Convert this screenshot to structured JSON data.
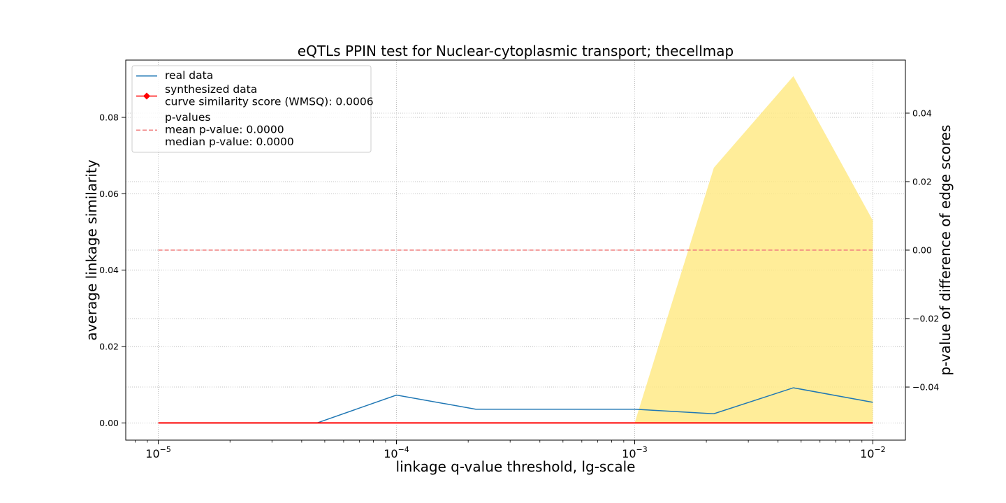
{
  "chart_data": {
    "type": "line",
    "title": "eQTLs PPIN test for Nuclear-cytoplasmic transport; thecellmap",
    "xlabel": "linkage q-value threshold, lg-scale",
    "ylabel": "average linkage similarity",
    "ylabel_right": "p-value of difference of edge scores",
    "xscale": "log",
    "xlim": [
      7.3e-06,
      0.0137
    ],
    "ylim": [
      -0.0045,
      0.095
    ],
    "ylim_right": [
      -0.0555,
      0.0555
    ],
    "grid": true,
    "x_ticks": [
      {
        "value": 1e-05,
        "base": "10",
        "exp": "−5"
      },
      {
        "value": 0.0001,
        "base": "10",
        "exp": "−4"
      },
      {
        "value": 0.001,
        "base": "10",
        "exp": "−3"
      },
      {
        "value": 0.01,
        "base": "10",
        "exp": "−2"
      }
    ],
    "y_ticks": [
      {
        "value": 0.0,
        "label": "0.00"
      },
      {
        "value": 0.02,
        "label": "0.02"
      },
      {
        "value": 0.04,
        "label": "0.04"
      },
      {
        "value": 0.06,
        "label": "0.06"
      },
      {
        "value": 0.08,
        "label": "0.08"
      }
    ],
    "y_right_ticks": [
      {
        "value": -0.04,
        "label": "−0.04"
      },
      {
        "value": -0.02,
        "label": "−0.02"
      },
      {
        "value": 0.0,
        "label": "0.00"
      },
      {
        "value": 0.02,
        "label": "0.02"
      },
      {
        "value": 0.04,
        "label": "0.04"
      }
    ],
    "x": [
      1e-05,
      2.15e-05,
      4.64e-05,
      0.0001,
      0.000215,
      0.000464,
      0.001,
      0.00215,
      0.00464,
      0.01
    ],
    "series": [
      {
        "name": "real data",
        "axis": "left",
        "color": "#1f77b4",
        "values": [
          0.0,
          0.0,
          0.0,
          0.0073,
          0.0036,
          0.0036,
          0.0036,
          0.0024,
          0.0092,
          0.0054
        ]
      },
      {
        "name": "synthesized data",
        "axis": "left",
        "color": "#ff0000",
        "values": [
          0.0,
          0.0,
          0.0,
          0.0,
          0.0,
          0.0,
          0.0,
          0.0,
          0.0,
          0.0
        ]
      }
    ],
    "band": {
      "axis": "left",
      "color": "#ffe97f",
      "x": [
        0.001,
        0.00215,
        0.00464,
        0.01
      ],
      "lower": [
        0.0,
        0.0,
        0.0,
        0.0
      ],
      "upper": [
        0.0,
        0.0668,
        0.0908,
        0.053
      ]
    },
    "pvalue_line": {
      "axis": "right",
      "color": "#f08080",
      "x": [
        1e-05,
        0.01
      ],
      "value": 0.0
    },
    "legend": {
      "placement": "top-left",
      "entries": [
        {
          "lines": [
            "real data"
          ],
          "color": "#1f77b4",
          "style": "solid",
          "marker": false
        },
        {
          "lines": [
            "synthesized data",
            "curve similarity score (WMSQ): 0.0006"
          ],
          "color": "#ff0000",
          "style": "solid",
          "marker": true
        },
        {
          "lines": [
            "p-values",
            "mean p-value: 0.0000",
            "median p-value: 0.0000"
          ],
          "color": "#f08080",
          "style": "dashed",
          "marker": false
        }
      ]
    }
  }
}
